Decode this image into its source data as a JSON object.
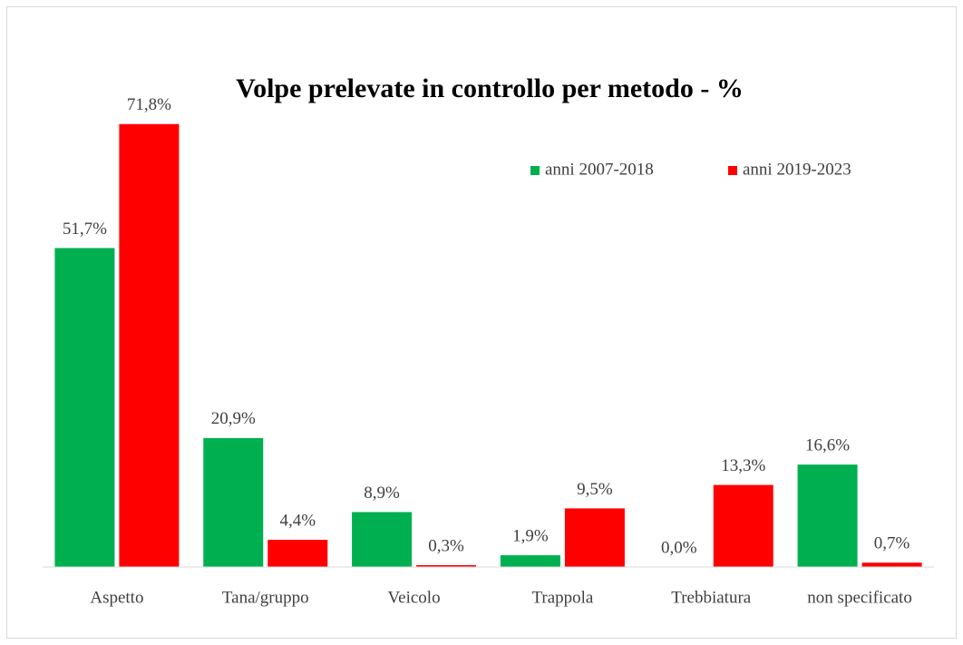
{
  "chart_data": {
    "type": "bar",
    "title": "Volpe prelevate in controllo per metodo - %",
    "categories": [
      "Aspetto",
      "Tana/gruppo",
      "Veicolo",
      "Trappola",
      "Trebbiatura",
      "non specificato"
    ],
    "series": [
      {
        "name": "anni 2007-2018",
        "color": "#00b050",
        "values": [
          51.7,
          20.9,
          8.9,
          1.9,
          0.0,
          16.6
        ],
        "value_labels": [
          "51,7%",
          "20,9%",
          "8,9%",
          "1,9%",
          "0,0%",
          "16,6%"
        ]
      },
      {
        "name": "anni 2019-2023",
        "color": "#ff0000",
        "values": [
          71.8,
          4.4,
          0.3,
          9.5,
          13.3,
          0.7
        ],
        "value_labels": [
          "71,8%",
          "4,4%",
          "0,3%",
          "9,5%",
          "13,3%",
          "0,7%"
        ]
      }
    ],
    "ylim": [
      0,
      80
    ],
    "legend": "top-right"
  }
}
